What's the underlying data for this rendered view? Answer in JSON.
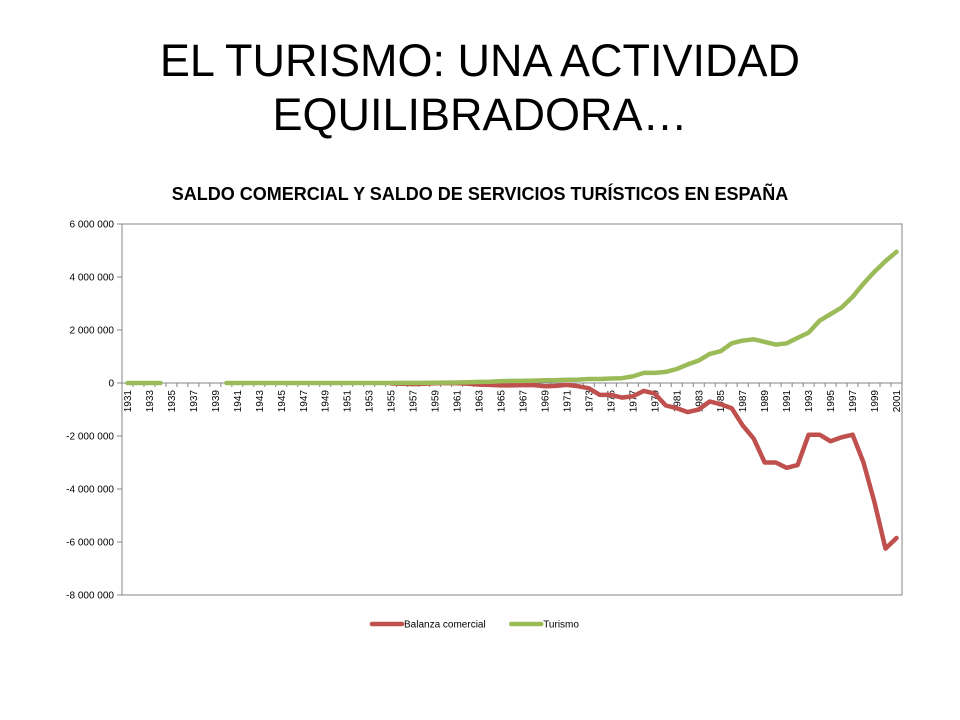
{
  "slide": {
    "title_line1": "EL TURISMO: UNA ACTIVIDAD",
    "title_line2": "EQUILIBRADORA…"
  },
  "chart_data": {
    "type": "line",
    "title": "SALDO COMERCIAL Y SALDO DE SERVICIOS TURÍSTICOS EN ESPAÑA",
    "xlabel": "",
    "ylabel": "",
    "ylim": [
      -8000000,
      6000000
    ],
    "yticks": [
      6000000,
      4000000,
      2000000,
      0,
      -2000000,
      -4000000,
      -6000000,
      -8000000
    ],
    "ytick_labels": [
      "6 000 000",
      "4 000 000",
      "2 000 000",
      "0",
      "-2 000 000",
      "-4 000 000",
      "-6 000 000",
      "-8 000 000"
    ],
    "xlim": [
      1931,
      2002
    ],
    "x_tick_labels": [
      "1931",
      "1933",
      "1935",
      "1937",
      "1939",
      "1941",
      "1943",
      "1945",
      "1947",
      "1949",
      "1951",
      "1953",
      "1955",
      "1957",
      "1959",
      "1961",
      "1963",
      "1965",
      "1967",
      "1969",
      "1971",
      "1973",
      "1975",
      "1977",
      "1979",
      "1981",
      "1983",
      "1985",
      "1987",
      "1989",
      "1991",
      "1993",
      "1995",
      "1997",
      "1999",
      "2001"
    ],
    "grid": false,
    "legend_position": "bottom",
    "series": [
      {
        "name": "Balanza comercial",
        "color": "#c0504d",
        "points": [
          [
            1955,
            -20000
          ],
          [
            1956,
            -30000
          ],
          [
            1957,
            -40000
          ],
          [
            1958,
            -30000
          ],
          [
            1959,
            -10000
          ],
          [
            1960,
            0
          ],
          [
            1961,
            -10000
          ],
          [
            1962,
            -30000
          ],
          [
            1963,
            -60000
          ],
          [
            1964,
            -70000
          ],
          [
            1965,
            -90000
          ],
          [
            1966,
            -90000
          ],
          [
            1967,
            -80000
          ],
          [
            1968,
            -80000
          ],
          [
            1969,
            -120000
          ],
          [
            1970,
            -110000
          ],
          [
            1971,
            -70000
          ],
          [
            1972,
            -120000
          ],
          [
            1973,
            -200000
          ],
          [
            1974,
            -450000
          ],
          [
            1975,
            -450000
          ],
          [
            1976,
            -550000
          ],
          [
            1977,
            -500000
          ],
          [
            1978,
            -300000
          ],
          [
            1979,
            -400000
          ],
          [
            1980,
            -850000
          ],
          [
            1981,
            -950000
          ],
          [
            1982,
            -1100000
          ],
          [
            1983,
            -1000000
          ],
          [
            1984,
            -700000
          ],
          [
            1985,
            -800000
          ],
          [
            1986,
            -950000
          ],
          [
            1987,
            -1600000
          ],
          [
            1988,
            -2100000
          ],
          [
            1989,
            -3000000
          ],
          [
            1990,
            -3000000
          ],
          [
            1991,
            -3200000
          ],
          [
            1992,
            -3100000
          ],
          [
            1993,
            -1950000
          ],
          [
            1994,
            -1950000
          ],
          [
            1995,
            -2200000
          ],
          [
            1996,
            -2050000
          ],
          [
            1997,
            -1950000
          ],
          [
            1998,
            -3000000
          ],
          [
            1999,
            -4500000
          ],
          [
            2000,
            -6250000
          ],
          [
            2001,
            -5850000
          ]
        ]
      },
      {
        "name": "Turismo",
        "color": "#9bbb59",
        "segments": [
          [
            [
              1931,
              0
            ],
            [
              1932,
              0
            ],
            [
              1933,
              0
            ],
            [
              1934,
              0
            ]
          ],
          [
            [
              1940,
              0
            ],
            [
              1941,
              0
            ],
            [
              1942,
              0
            ],
            [
              1943,
              0
            ],
            [
              1944,
              0
            ],
            [
              1945,
              0
            ],
            [
              1946,
              0
            ],
            [
              1947,
              0
            ],
            [
              1948,
              0
            ],
            [
              1949,
              0
            ],
            [
              1950,
              0
            ],
            [
              1951,
              0
            ],
            [
              1952,
              0
            ],
            [
              1953,
              0
            ],
            [
              1954,
              0
            ],
            [
              1955,
              0
            ],
            [
              1956,
              5000
            ],
            [
              1957,
              5000
            ],
            [
              1958,
              5000
            ],
            [
              1959,
              10000
            ],
            [
              1960,
              15000
            ],
            [
              1961,
              20000
            ],
            [
              1962,
              25000
            ],
            [
              1963,
              40000
            ],
            [
              1964,
              50000
            ],
            [
              1965,
              70000
            ],
            [
              1966,
              80000
            ],
            [
              1967,
              80000
            ],
            [
              1968,
              90000
            ],
            [
              1969,
              100000
            ],
            [
              1970,
              110000
            ],
            [
              1971,
              120000
            ],
            [
              1972,
              130000
            ],
            [
              1973,
              150000
            ],
            [
              1974,
              150000
            ],
            [
              1975,
              170000
            ],
            [
              1976,
              180000
            ],
            [
              1977,
              250000
            ],
            [
              1978,
              380000
            ],
            [
              1979,
              380000
            ],
            [
              1980,
              420000
            ],
            [
              1981,
              530000
            ],
            [
              1982,
              700000
            ],
            [
              1983,
              850000
            ],
            [
              1984,
              1100000
            ],
            [
              1985,
              1200000
            ],
            [
              1986,
              1500000
            ],
            [
              1987,
              1600000
            ],
            [
              1988,
              1650000
            ],
            [
              1989,
              1550000
            ],
            [
              1990,
              1450000
            ],
            [
              1991,
              1500000
            ],
            [
              1992,
              1700000
            ],
            [
              1993,
              1900000
            ],
            [
              1994,
              2350000
            ],
            [
              1995,
              2600000
            ],
            [
              1996,
              2850000
            ],
            [
              1997,
              3250000
            ],
            [
              1998,
              3750000
            ],
            [
              1999,
              4200000
            ],
            [
              2000,
              4600000
            ],
            [
              2001,
              4950000
            ]
          ]
        ]
      }
    ]
  }
}
